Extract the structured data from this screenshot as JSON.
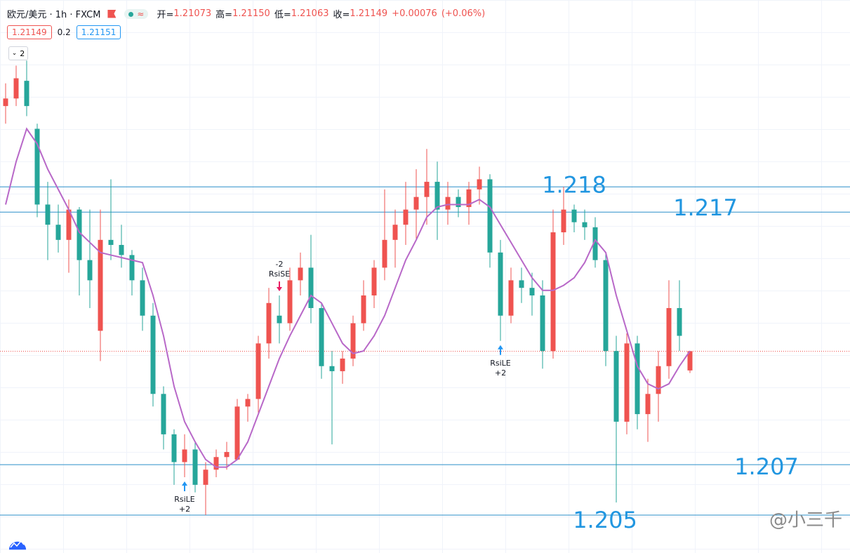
{
  "header": {
    "symbol": "欧元/美元 · 1h · FXCM",
    "open_label": "开=",
    "open": "1.21073",
    "high_label": "高=",
    "high": "1.21150",
    "low_label": "低=",
    "low": "1.21063",
    "close_label": "收=",
    "close": "1.21149",
    "change": "+0.00076",
    "change_pct": "(+0.06%)"
  },
  "price_boxes": {
    "bid": "1.21149",
    "spread": "0.2",
    "ask": "1.21151"
  },
  "indicator_toggle": "2",
  "chart_data": {
    "type": "candlestick",
    "ylim": [
      1.2035,
      1.2254
    ],
    "up_color": "#ef5350",
    "down_color": "#26a69a",
    "open": [
      1.2212,
      1.2215,
      1.2222,
      1.2203,
      1.2173,
      1.2165,
      1.2159,
      1.2171,
      1.2151,
      1.2123,
      1.2159,
      1.2157,
      1.2153,
      1.2143,
      1.2129,
      1.2098,
      1.2082,
      1.2071,
      1.2076,
      1.2062,
      1.2068,
      1.2073,
      1.2072,
      1.2093,
      1.2096,
      1.2118,
      1.2129,
      1.2126,
      1.2143,
      1.2148,
      1.2132,
      1.2109,
      1.2107,
      1.2112,
      1.2126,
      1.2137,
      1.2148,
      1.2159,
      1.2165,
      1.2171,
      1.2176,
      1.2182,
      1.2171,
      1.2176,
      1.2172,
      1.2179,
      1.2183,
      1.2154,
      1.2129,
      1.2143,
      1.214,
      1.2137,
      1.2115,
      1.2162,
      1.2171,
      1.2166,
      1.2164,
      1.2151,
      1.2115,
      1.2087,
      1.2118,
      1.209,
      1.2098,
      1.2109,
      1.2132,
      1.21073
    ],
    "high": [
      1.2221,
      1.2228,
      1.223,
      1.2205,
      1.2182,
      1.2173,
      1.2175,
      1.2172,
      1.2171,
      1.2171,
      1.2183,
      1.2165,
      1.2155,
      1.2148,
      1.2134,
      1.2101,
      1.2084,
      1.2082,
      1.2079,
      1.2071,
      1.2076,
      1.2079,
      1.2096,
      1.2098,
      1.2121,
      1.214,
      1.2137,
      1.2148,
      1.2154,
      1.2161,
      1.2134,
      1.2115,
      1.2115,
      1.2129,
      1.2143,
      1.2151,
      1.2179,
      1.2171,
      1.2182,
      1.2187,
      1.2195,
      1.219,
      1.2182,
      1.2179,
      1.2182,
      1.2188,
      1.2185,
      1.2159,
      1.2148,
      1.2148,
      1.2146,
      1.2143,
      1.2171,
      1.218,
      1.2173,
      1.2171,
      1.2168,
      1.2154,
      1.2121,
      1.2122,
      1.2121,
      1.2104,
      1.2115,
      1.2143,
      1.2143,
      1.2115
    ],
    "low": [
      1.2205,
      1.2212,
      1.2208,
      1.2168,
      1.2151,
      1.2154,
      1.2146,
      1.2137,
      1.2132,
      1.2111,
      1.2151,
      1.2148,
      1.2137,
      1.2123,
      1.2093,
      1.2076,
      1.2062,
      1.2065,
      1.2059,
      1.205,
      1.2065,
      1.2068,
      1.2072,
      1.2087,
      1.209,
      1.2112,
      1.2118,
      1.2123,
      1.2137,
      1.2126,
      1.2104,
      1.2078,
      1.2102,
      1.2109,
      1.2123,
      1.2132,
      1.2143,
      1.2148,
      1.2157,
      1.2159,
      1.2165,
      1.2159,
      1.2165,
      1.2168,
      1.2165,
      1.2173,
      1.2148,
      1.2119,
      1.2126,
      1.2134,
      1.2129,
      1.2108,
      1.2112,
      1.2157,
      1.2162,
      1.2159,
      1.2148,
      1.2109,
      1.2055,
      1.2082,
      1.2084,
      1.2079,
      1.2087,
      1.2104,
      1.2115,
      1.21063
    ],
    "close": [
      1.2215,
      1.2223,
      1.2212,
      1.2173,
      1.2165,
      1.2159,
      1.2171,
      1.2151,
      1.2143,
      1.2159,
      1.2157,
      1.2153,
      1.2143,
      1.2129,
      1.2098,
      1.2082,
      1.2071,
      1.2076,
      1.2062,
      1.2068,
      1.2073,
      1.2075,
      1.2093,
      1.2096,
      1.2118,
      1.2134,
      1.2126,
      1.2143,
      1.2148,
      1.2132,
      1.2109,
      1.2107,
      1.2112,
      1.2126,
      1.2137,
      1.2148,
      1.2159,
      1.2165,
      1.2171,
      1.2176,
      1.2182,
      1.2171,
      1.2176,
      1.2172,
      1.2179,
      1.2183,
      1.2154,
      1.2129,
      1.2143,
      1.214,
      1.2137,
      1.2115,
      1.2162,
      1.2171,
      1.2166,
      1.2164,
      1.2151,
      1.2115,
      1.2087,
      1.2118,
      1.209,
      1.2098,
      1.2109,
      1.2132,
      1.2121,
      1.21149
    ],
    "ma": {
      "color": "#b868c8",
      "values": [
        1.2173,
        1.219,
        1.2203,
        1.2197,
        1.2187,
        1.2179,
        1.2171,
        1.2162,
        1.2158,
        1.2154,
        1.2153,
        1.2152,
        1.2151,
        1.215,
        1.2137,
        1.2121,
        1.2101,
        1.2087,
        1.2079,
        1.2072,
        1.2069,
        1.2069,
        1.2072,
        1.2079,
        1.209,
        1.2101,
        1.2112,
        1.2121,
        1.2129,
        1.2137,
        1.2134,
        1.2126,
        1.2118,
        1.2114,
        1.2115,
        1.2121,
        1.2129,
        1.214,
        1.2151,
        1.2159,
        1.2168,
        1.2172,
        1.2173,
        1.2173,
        1.2173,
        1.2175,
        1.2172,
        1.2165,
        1.2158,
        1.2151,
        1.2144,
        1.2139,
        1.2139,
        1.2141,
        1.2144,
        1.215,
        1.2159,
        1.2154,
        1.2137,
        1.2123,
        1.2109,
        1.2102,
        1.21,
        1.2102,
        1.2109,
        1.2115
      ]
    },
    "levels": [
      1.218,
      1.217,
      1.207,
      1.205
    ],
    "level_color": "#2a8fc9",
    "current_price": 1.21149,
    "signals": [
      {
        "name": "RsiLE",
        "qty": "+2"
      },
      {
        "name": "RsiSE",
        "qty": "-2"
      },
      {
        "name": "RsiLE",
        "qty": "+2"
      }
    ]
  },
  "watermark": "@小三千"
}
